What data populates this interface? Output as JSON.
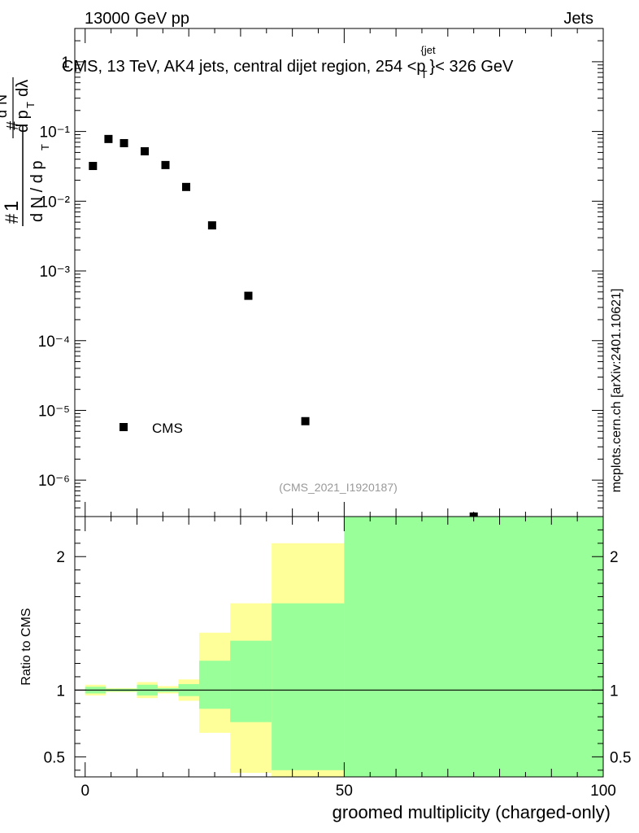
{
  "header": {
    "left": "13000 GeV pp",
    "right": "Jets",
    "side": "mcplots.cern.ch [arXiv:2401.10621]"
  },
  "chart_data": [
    {
      "type": "scatter",
      "title": "CMS, 13 TeV, AK4 jets, central dijet region, 254 <p_T^{jet}< 326 GeV",
      "title_parts": {
        "pre": "CMS, 13 TeV, AK4 jets, central dijet region, 254 <p",
        "sup": "{jet",
        "sub": "T",
        "post": "}< 326 GeV"
      },
      "ylabel": "1/#N d#N/dp_T d^2N/dp_T dλ",
      "yscale": "log",
      "ylim": [
        3e-07,
        3
      ],
      "xlim": [
        -2,
        100
      ],
      "y_ticklabels": [
        "10⁻⁶",
        "10⁻⁵",
        "10⁻⁴",
        "10⁻³",
        "10⁻²",
        "10⁻¹",
        "1"
      ],
      "analysis_label": "(CMS_2021_I1920187)",
      "legend": [
        "CMS"
      ],
      "series": [
        {
          "name": "CMS",
          "x": [
            1.5,
            4.5,
            7.5,
            11.5,
            15.5,
            19.5,
            24.5,
            31.5,
            42.5,
            75
          ],
          "y": [
            0.032,
            0.078,
            0.068,
            0.052,
            0.033,
            0.016,
            0.0045,
            0.00044,
            7e-06,
            3e-07
          ]
        }
      ]
    },
    {
      "type": "area",
      "ylabel": "Ratio to CMS",
      "xlabel": "groomed multiplicity (charged-only)",
      "xlim": [
        -2,
        100
      ],
      "ylim": [
        0.35,
        2.3
      ],
      "x_ticks": [
        0,
        50,
        100
      ],
      "x_ticklabels": [
        "0",
        "50",
        "100"
      ],
      "y_ticks": [
        0.5,
        1,
        2
      ],
      "y_ticklabels": [
        "0.5",
        "1",
        "2"
      ],
      "bin_edges": [
        0,
        4,
        10,
        14,
        18,
        22,
        28,
        36,
        50,
        100
      ],
      "band_outer": {
        "color": "#ffff99",
        "low": [
          0.96,
          0.985,
          0.94,
          0.975,
          0.92,
          0.68,
          0.38,
          0.35,
          0.35
        ],
        "high": [
          1.04,
          1.015,
          1.06,
          1.03,
          1.08,
          1.43,
          1.65,
          2.1,
          2.3
        ]
      },
      "band_inner": {
        "color": "#99ff99",
        "low": [
          0.975,
          0.99,
          0.96,
          0.985,
          0.955,
          0.86,
          0.76,
          0.4,
          0.35
        ],
        "high": [
          1.025,
          1.01,
          1.04,
          1.015,
          1.045,
          1.22,
          1.37,
          1.65,
          2.3
        ]
      },
      "reference": 1
    }
  ]
}
